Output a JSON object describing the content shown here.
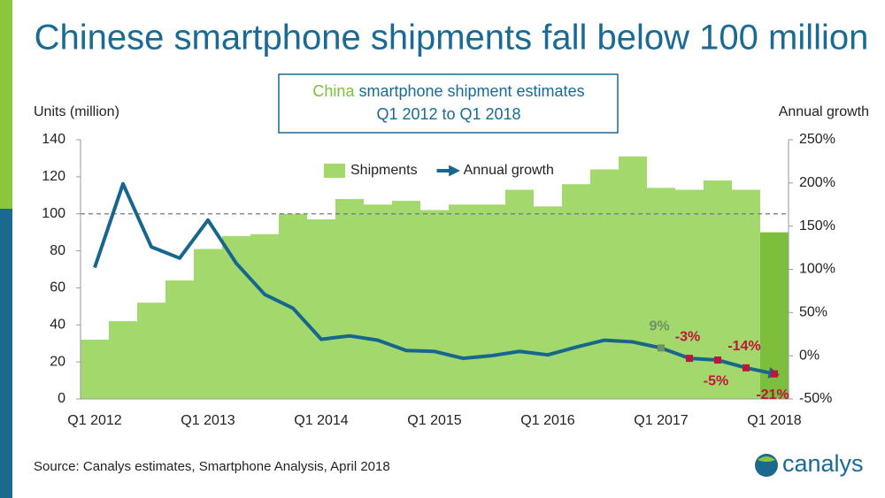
{
  "title": "Chinese smartphone shipments fall below 100 million",
  "source": "Source: Canalys estimates, Smartphone Analysis, April 2018",
  "logo": "canalys",
  "chart_data": {
    "type": "bar-line",
    "subtitle_highlight": "China",
    "subtitle": "smartphone shipment estimates",
    "subtitle_2": "Q1 2012 to Q1 2018",
    "y_label": "Units (million)",
    "y2_label": "Annual growth",
    "categories": [
      "Q1 2012",
      null,
      null,
      null,
      "Q1 2013",
      null,
      null,
      null,
      "Q1 2014",
      null,
      null,
      null,
      "Q1 2015",
      null,
      null,
      null,
      "Q1 2016",
      null,
      null,
      null,
      "Q1 2017",
      null,
      null,
      null,
      "Q1 2018"
    ],
    "ylim": [
      0,
      140
    ],
    "yticks": [
      0,
      20,
      40,
      60,
      80,
      100,
      120,
      140
    ],
    "y2lim": [
      -50,
      250
    ],
    "y2ticks": [
      {
        "value": -50,
        "label": "-50%"
      },
      {
        "value": 0,
        "label": "0%"
      },
      {
        "value": 50,
        "label": "50%"
      },
      {
        "value": 100,
        "label": "100%"
      },
      {
        "value": 150,
        "label": "150%"
      },
      {
        "value": 200,
        "label": "200%"
      },
      {
        "value": 250,
        "label": "250%"
      }
    ],
    "reference_line": 100,
    "series": [
      {
        "name": "Shipments",
        "type": "bar",
        "color": "#a3d86c",
        "colors": [
          "#a3d86c",
          "#a3d86c",
          "#a3d86c",
          "#a3d86c",
          "#a3d86c",
          "#a3d86c",
          "#a3d86c",
          "#a3d86c",
          "#a3d86c",
          "#a3d86c",
          "#a3d86c",
          "#a3d86c",
          "#a3d86c",
          "#a3d86c",
          "#a3d86c",
          "#a3d86c",
          "#a3d86c",
          "#a3d86c",
          "#a3d86c",
          "#a3d86c",
          "#a3d86c",
          "#a3d86c",
          "#a3d86c",
          "#a3d86c",
          "#7cbf3c"
        ],
        "values": [
          32,
          42,
          52,
          64,
          81,
          88,
          89,
          100,
          97,
          108,
          105,
          107,
          102,
          105,
          105,
          113,
          104,
          116,
          124,
          131,
          114,
          113,
          118,
          113,
          90
        ]
      },
      {
        "name": "Annual growth",
        "type": "line",
        "axis": "y2",
        "color": "#17668d",
        "values": [
          102,
          199,
          126,
          113,
          157,
          107,
          71,
          55,
          19,
          23,
          18,
          6,
          5,
          -3,
          0,
          5,
          1,
          10,
          18,
          16,
          9,
          -3,
          -5,
          -14,
          -21
        ],
        "value_labels": [
          null,
          null,
          null,
          null,
          null,
          null,
          null,
          null,
          null,
          null,
          null,
          null,
          null,
          null,
          null,
          null,
          null,
          null,
          null,
          null,
          "9%",
          "-3%",
          "-5%",
          "-14%",
          "-21%"
        ],
        "marker_colors": [
          null,
          null,
          null,
          null,
          null,
          null,
          null,
          null,
          null,
          null,
          null,
          null,
          null,
          null,
          null,
          null,
          null,
          null,
          null,
          null,
          "#6f9260",
          "#c0143c",
          "#c0143c",
          "#c0143c",
          "#c0143c"
        ]
      }
    ]
  }
}
